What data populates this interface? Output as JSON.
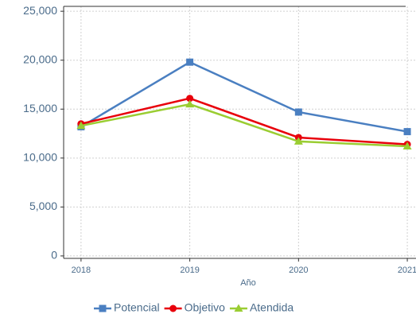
{
  "chart_data": {
    "type": "line",
    "x": [
      2018,
      2019,
      2020,
      2021
    ],
    "xlabel": "Año",
    "xlim": [
      2017.84,
      2021.08
    ],
    "xticks": [
      2018,
      2019,
      2020,
      2021
    ],
    "ylim": [
      -250,
      25500
    ],
    "yticks": [
      0,
      {
        "value": 5000,
        "label": "5,000"
      },
      {
        "value": 10000,
        "label": "10,000"
      },
      {
        "value": 15000,
        "label": "15,000"
      },
      {
        "value": 20000,
        "label": "20,000"
      },
      {
        "value": 25000,
        "label": "25,000"
      }
    ],
    "grid": true,
    "legend": "bottom",
    "series": [
      {
        "name": "Potencial",
        "color": "#4a7fc1",
        "marker": "square",
        "values": [
          13200,
          19800,
          14700,
          12700
        ]
      },
      {
        "name": "Objetivo",
        "color": "#e8000b",
        "marker": "circle",
        "values": [
          13500,
          16100,
          12100,
          11400
        ]
      },
      {
        "name": "Atendida",
        "color": "#9acd32",
        "marker": "triangle",
        "values": [
          13300,
          15500,
          11700,
          11200
        ]
      }
    ]
  }
}
